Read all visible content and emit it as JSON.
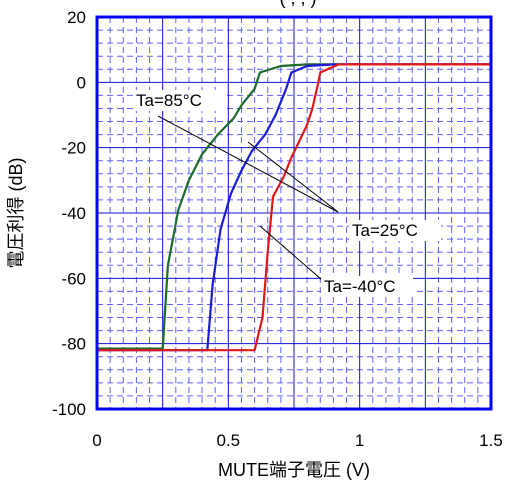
{
  "chart_data": {
    "type": "line",
    "title_partial": "( , , )",
    "xlabel": "MUTE端子電圧 (V)",
    "ylabel": "電圧利得 (dB)",
    "xlim": [
      0,
      1.5
    ],
    "ylim": [
      -100,
      20
    ],
    "x_ticks": [
      0,
      0.5,
      1,
      1.5
    ],
    "x_tick_labels": [
      "0",
      "0.5",
      "1",
      "1.5"
    ],
    "y_ticks": [
      20,
      0,
      -20,
      -40,
      -60,
      -80,
      -100
    ],
    "y_tick_labels": [
      "20",
      "0",
      "-20",
      "-40",
      "-60",
      "-80",
      "-100"
    ],
    "grid": true,
    "series": [
      {
        "name": "Ta=85°C",
        "color": "#1a6b2a",
        "points": [
          [
            0,
            -81.5
          ],
          [
            0.25,
            -81.5
          ],
          [
            0.27,
            -56
          ],
          [
            0.31,
            -39
          ],
          [
            0.35,
            -30
          ],
          [
            0.4,
            -22
          ],
          [
            0.46,
            -16
          ],
          [
            0.52,
            -11
          ],
          [
            0.55,
            -7
          ],
          [
            0.6,
            -2
          ],
          [
            0.62,
            3
          ],
          [
            0.7,
            5
          ],
          [
            0.8,
            5.5
          ],
          [
            1.0,
            5.5
          ],
          [
            1.5,
            5.5
          ]
        ]
      },
      {
        "name": "Ta=25°C",
        "color": "#1c1cd6",
        "points": [
          [
            0,
            -82
          ],
          [
            0.42,
            -82
          ],
          [
            0.44,
            -62
          ],
          [
            0.47,
            -45
          ],
          [
            0.51,
            -34
          ],
          [
            0.55,
            -27
          ],
          [
            0.59,
            -21
          ],
          [
            0.64,
            -16
          ],
          [
            0.68,
            -10
          ],
          [
            0.72,
            -2
          ],
          [
            0.74,
            3
          ],
          [
            0.8,
            5
          ],
          [
            0.9,
            5.5
          ],
          [
            1.0,
            5.5
          ],
          [
            1.5,
            5.5
          ]
        ]
      },
      {
        "name": "Ta=-40°C",
        "color": "#e01818",
        "points": [
          [
            0,
            -82
          ],
          [
            0.6,
            -82
          ],
          [
            0.63,
            -72
          ],
          [
            0.65,
            -52
          ],
          [
            0.67,
            -35
          ],
          [
            0.71,
            -29
          ],
          [
            0.74,
            -23
          ],
          [
            0.77,
            -18
          ],
          [
            0.8,
            -13
          ],
          [
            0.82,
            -8
          ],
          [
            0.84,
            -1
          ],
          [
            0.85,
            3
          ],
          [
            0.92,
            5.5
          ],
          [
            1.0,
            5.5
          ],
          [
            1.5,
            5.5
          ]
        ]
      }
    ],
    "annotations": [
      {
        "label": "Ta=85°C",
        "target_series": "Ta=85°C"
      },
      {
        "label": "Ta=25°C",
        "target_series": "Ta=25°C"
      },
      {
        "label": "Ta=-40°C",
        "target_series": "Ta=-40°C"
      }
    ],
    "colors": {
      "frame": "#0000ff",
      "grid_major": "#1010d0",
      "grid_minor": "#6060ff"
    }
  }
}
